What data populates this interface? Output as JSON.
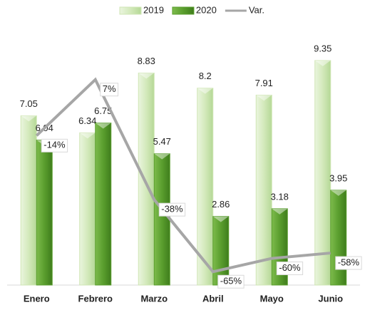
{
  "chart_data": {
    "type": "bar",
    "categories": [
      "Enero",
      "Febrero",
      "Marzo",
      "Abril",
      "Mayo",
      "Junio"
    ],
    "series": [
      {
        "name": "2019",
        "color": "#cfe6b4",
        "values": [
          7.05,
          6.34,
          8.83,
          8.2,
          7.91,
          9.35
        ]
      },
      {
        "name": "2020",
        "color": "#5a9e2e",
        "values": [
          6.04,
          6.75,
          5.47,
          2.86,
          3.18,
          3.95
        ]
      },
      {
        "name": "Var.",
        "type": "line",
        "axis": "y2",
        "color": "#a6a6a6",
        "values": [
          -14,
          7,
          -38,
          -65,
          -60,
          -58
        ],
        "value_labels": [
          "-14%",
          "7%",
          "-38%",
          "-65%",
          "-60%",
          "-58%"
        ]
      }
    ],
    "ylim": [
      0,
      10
    ],
    "y2lim": [
      -70,
      20
    ],
    "legend": "top"
  }
}
